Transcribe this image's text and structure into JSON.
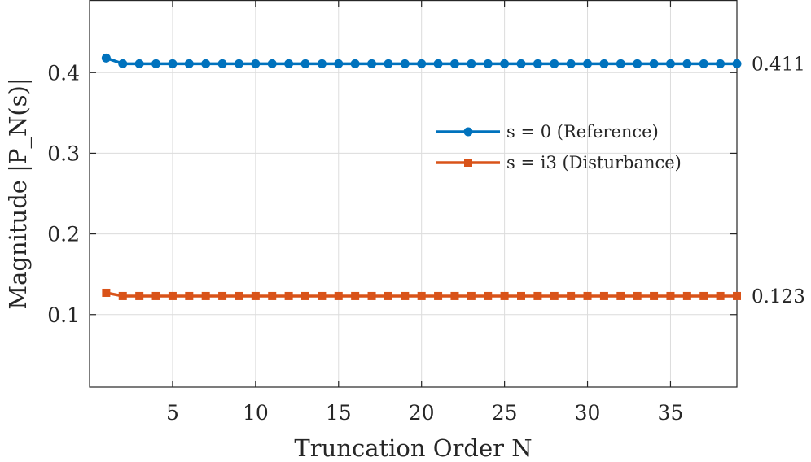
{
  "chart_data": {
    "type": "line",
    "xlabel": "Truncation Order N",
    "ylabel": "Magnitude |P_N(s)|",
    "xlim": [
      0,
      39
    ],
    "ylim": [
      0.01,
      0.49
    ],
    "x_ticks": [
      5,
      10,
      15,
      20,
      25,
      30,
      35
    ],
    "y_ticks": [
      0.1,
      0.2,
      0.3,
      0.4
    ],
    "x_tick_labels": [
      "5",
      "10",
      "15",
      "20",
      "25",
      "30",
      "35"
    ],
    "y_tick_labels": [
      "0.1",
      "0.2",
      "0.3",
      "0.4"
    ],
    "grid": true,
    "legend_position": "center-right",
    "x": [
      1,
      2,
      3,
      4,
      5,
      6,
      7,
      8,
      9,
      10,
      11,
      12,
      13,
      14,
      15,
      16,
      17,
      18,
      19,
      20,
      21,
      22,
      23,
      24,
      25,
      26,
      27,
      28,
      29,
      30,
      31,
      32,
      33,
      34,
      35,
      36,
      37,
      38,
      39
    ],
    "series": [
      {
        "name": "s = 0 (Reference)",
        "color": "#0072BD",
        "marker": "circle",
        "end_label": "0.411",
        "values": [
          0.418,
          0.411,
          0.411,
          0.411,
          0.411,
          0.411,
          0.411,
          0.411,
          0.411,
          0.411,
          0.411,
          0.411,
          0.411,
          0.411,
          0.411,
          0.411,
          0.411,
          0.411,
          0.411,
          0.411,
          0.411,
          0.411,
          0.411,
          0.411,
          0.411,
          0.411,
          0.411,
          0.411,
          0.411,
          0.411,
          0.411,
          0.411,
          0.411,
          0.411,
          0.411,
          0.411,
          0.411,
          0.411,
          0.411
        ]
      },
      {
        "name": "s = i3 (Disturbance)",
        "color": "#D95319",
        "marker": "square",
        "end_label": "0.123",
        "values": [
          0.127,
          0.123,
          0.123,
          0.123,
          0.123,
          0.123,
          0.123,
          0.123,
          0.123,
          0.123,
          0.123,
          0.123,
          0.123,
          0.123,
          0.123,
          0.123,
          0.123,
          0.123,
          0.123,
          0.123,
          0.123,
          0.123,
          0.123,
          0.123,
          0.123,
          0.123,
          0.123,
          0.123,
          0.123,
          0.123,
          0.123,
          0.123,
          0.123,
          0.123,
          0.123,
          0.123,
          0.123,
          0.123,
          0.123
        ]
      }
    ]
  }
}
